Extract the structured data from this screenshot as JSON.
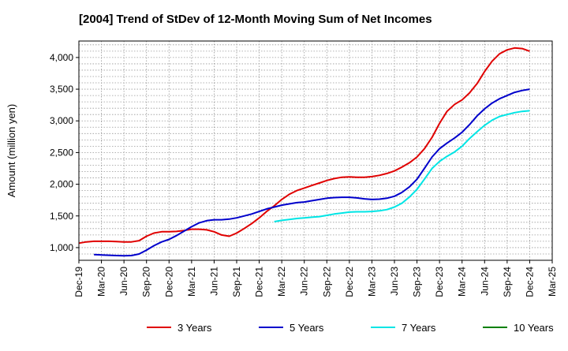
{
  "chart_data": {
    "type": "line",
    "title": "[2004]  Trend of StDev of 12-Month Moving Sum of Net Incomes",
    "xlabel": "",
    "ylabel": "Amount (million yen)",
    "x_ticks": [
      "Dec-19",
      "Mar-20",
      "Jun-20",
      "Sep-20",
      "Dec-20",
      "Mar-21",
      "Jun-21",
      "Sep-21",
      "Dec-21",
      "Mar-22",
      "Jun-22",
      "Sep-22",
      "Dec-22",
      "Mar-23",
      "Jun-23",
      "Sep-23",
      "Dec-23",
      "Mar-24",
      "Jun-24",
      "Sep-24",
      "Dec-24",
      "Mar-25"
    ],
    "x_range": [
      0,
      21
    ],
    "y_ticks": [
      "1,000",
      "1,500",
      "2,000",
      "2,500",
      "3,000",
      "3,500",
      "4,000"
    ],
    "y_tick_values": [
      1000,
      1500,
      2000,
      2500,
      3000,
      3500,
      4000
    ],
    "ylim": [
      800,
      4260
    ],
    "grid": true,
    "legend_position": "bottom",
    "series": [
      {
        "name": "3 Years",
        "color": "#e00000",
        "x": [
          0,
          0.33,
          0.67,
          1,
          1.33,
          1.67,
          2,
          2.33,
          2.67,
          3,
          3.33,
          3.67,
          4,
          4.33,
          4.67,
          5,
          5.33,
          5.67,
          6,
          6.33,
          6.67,
          7,
          7.33,
          7.67,
          8,
          8.33,
          8.67,
          9,
          9.33,
          9.67,
          10,
          10.33,
          10.67,
          11,
          11.33,
          11.67,
          12,
          12.33,
          12.67,
          13,
          13.33,
          13.67,
          14,
          14.33,
          14.67,
          15,
          15.33,
          15.67,
          16,
          16.33,
          16.67,
          17,
          17.33,
          17.67,
          18,
          18.33,
          18.67,
          19,
          19.33,
          19.67,
          20
        ],
        "values": [
          1070,
          1090,
          1100,
          1100,
          1100,
          1095,
          1090,
          1090,
          1110,
          1180,
          1230,
          1250,
          1250,
          1255,
          1270,
          1290,
          1290,
          1280,
          1250,
          1200,
          1180,
          1230,
          1300,
          1380,
          1470,
          1570,
          1660,
          1760,
          1840,
          1900,
          1940,
          1980,
          2020,
          2060,
          2090,
          2110,
          2115,
          2110,
          2110,
          2120,
          2140,
          2170,
          2210,
          2270,
          2340,
          2430,
          2560,
          2740,
          2960,
          3150,
          3260,
          3330,
          3440,
          3590,
          3780,
          3940,
          4060,
          4120,
          4150,
          4140,
          4100
        ]
      },
      {
        "name": "5 Years",
        "color": "#0000cc",
        "x": [
          0.67,
          1,
          1.33,
          1.67,
          2,
          2.33,
          2.67,
          3,
          3.33,
          3.67,
          4,
          4.33,
          4.67,
          5,
          5.33,
          5.67,
          6,
          6.33,
          6.67,
          7,
          7.33,
          7.67,
          8,
          8.33,
          8.67,
          9,
          9.33,
          9.67,
          10,
          10.33,
          10.67,
          11,
          11.33,
          11.67,
          12,
          12.33,
          12.67,
          13,
          13.33,
          13.67,
          14,
          14.33,
          14.67,
          15,
          15.33,
          15.67,
          16,
          16.33,
          16.67,
          17,
          17.33,
          17.67,
          18,
          18.33,
          18.67,
          19,
          19.33,
          19.67,
          20
        ],
        "values": [
          890,
          885,
          880,
          875,
          872,
          875,
          900,
          960,
          1030,
          1090,
          1130,
          1190,
          1260,
          1330,
          1390,
          1425,
          1440,
          1440,
          1450,
          1470,
          1500,
          1530,
          1570,
          1610,
          1640,
          1670,
          1690,
          1710,
          1720,
          1740,
          1760,
          1780,
          1790,
          1795,
          1795,
          1785,
          1770,
          1760,
          1765,
          1780,
          1810,
          1870,
          1960,
          2080,
          2250,
          2430,
          2560,
          2650,
          2730,
          2820,
          2940,
          3080,
          3190,
          3280,
          3350,
          3400,
          3450,
          3480,
          3500
        ]
      },
      {
        "name": "7 Years",
        "color": "#00e5e5",
        "x": [
          8.67,
          9,
          9.33,
          9.67,
          10,
          10.33,
          10.67,
          11,
          11.33,
          11.67,
          12,
          12.33,
          12.67,
          13,
          13.33,
          13.67,
          14,
          14.33,
          14.67,
          15,
          15.33,
          15.67,
          16,
          16.33,
          16.67,
          17,
          17.33,
          17.67,
          18,
          18.33,
          18.67,
          19,
          19.33,
          19.67,
          20
        ],
        "values": [
          1410,
          1430,
          1445,
          1460,
          1470,
          1480,
          1490,
          1510,
          1530,
          1545,
          1560,
          1565,
          1565,
          1570,
          1580,
          1600,
          1640,
          1700,
          1800,
          1920,
          2080,
          2250,
          2360,
          2440,
          2510,
          2600,
          2720,
          2830,
          2930,
          3010,
          3070,
          3100,
          3130,
          3150,
          3160
        ]
      },
      {
        "name": "10 Years",
        "color": "#008000",
        "x": [],
        "values": []
      }
    ]
  }
}
